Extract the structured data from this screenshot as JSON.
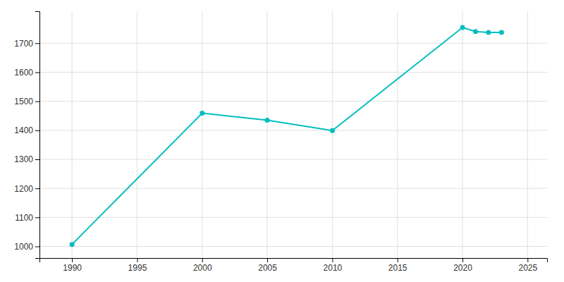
{
  "chart_data": {
    "type": "line",
    "x": [
      1990,
      2000,
      2005,
      2010,
      2020,
      2021,
      2022,
      2023
    ],
    "values": [
      1007,
      1459,
      1435,
      1399,
      1754,
      1740,
      1737,
      1737
    ],
    "color": "#00BEBE",
    "marker": "circle",
    "xlim": [
      1987.5,
      2026.5
    ],
    "ylim": [
      960,
      1810
    ],
    "xticks": [
      1990,
      1995,
      2000,
      2005,
      2010,
      2015,
      2020,
      2025
    ],
    "yticks": [
      1000,
      1100,
      1200,
      1300,
      1400,
      1500,
      1600,
      1700
    ],
    "grid": true
  }
}
